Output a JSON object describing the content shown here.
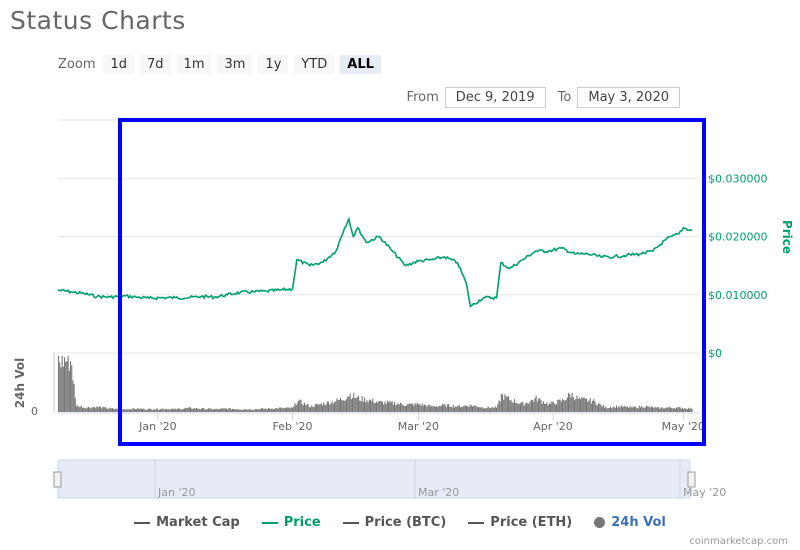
{
  "title": "Status Charts",
  "zoom": {
    "label": "Zoom",
    "buttons": [
      "1d",
      "7d",
      "1m",
      "3m",
      "1y",
      "YTD",
      "ALL"
    ],
    "active": "ALL"
  },
  "range": {
    "from_label": "From",
    "from": "Dec 9, 2019",
    "to_label": "To",
    "to": "May 3, 2020"
  },
  "colors": {
    "price": "#00a06b",
    "volume": "#777777",
    "highlight": "#0000ff",
    "navigator": "#e6ebf5"
  },
  "legend": [
    {
      "label": "Market Cap",
      "color": "#555555",
      "symbol": "line"
    },
    {
      "label": "Price",
      "color": "#00a06b",
      "symbol": "line"
    },
    {
      "label": "Price (BTC)",
      "color": "#555555",
      "symbol": "line"
    },
    {
      "label": "Price (ETH)",
      "color": "#555555",
      "symbol": "line"
    },
    {
      "label": "24h Vol",
      "color": "#777777",
      "symbol": "circle"
    }
  ],
  "credit": "coinmarketcap.com",
  "navigator_labels": [
    "Jan '20",
    "Mar '20",
    "May '20"
  ],
  "chart_data": {
    "type": "line",
    "x_start": "2019-12-09",
    "x_end": "2020-05-03",
    "x_ticks": [
      "Jan '20",
      "Feb '20",
      "Mar '20",
      "Apr '20",
      "May '20"
    ],
    "y_ticks": [
      "$0",
      "$0.010000",
      "$0.020000",
      "$0.030000"
    ],
    "ylabel": "Price",
    "vol_label": "24h Vol",
    "vol_zero_label": "0",
    "ylim": [
      0,
      0.04
    ],
    "grid": true,
    "legend_position": "bottom",
    "series": [
      {
        "name": "Price",
        "points": [
          [
            "2019-12-09",
            0.0108
          ],
          [
            "2019-12-12",
            0.0105
          ],
          [
            "2019-12-15",
            0.0102
          ],
          [
            "2019-12-18",
            0.0097
          ],
          [
            "2019-12-21",
            0.0096
          ],
          [
            "2019-12-24",
            0.0098
          ],
          [
            "2019-12-27",
            0.0096
          ],
          [
            "2019-12-30",
            0.0094
          ],
          [
            "2020-01-02",
            0.0095
          ],
          [
            "2020-01-05",
            0.0095
          ],
          [
            "2020-01-08",
            0.0095
          ],
          [
            "2020-01-11",
            0.0097
          ],
          [
            "2020-01-14",
            0.0096
          ],
          [
            "2020-01-17",
            0.01
          ],
          [
            "2020-01-20",
            0.0104
          ],
          [
            "2020-01-23",
            0.0105
          ],
          [
            "2020-01-26",
            0.0106
          ],
          [
            "2020-01-29",
            0.0108
          ],
          [
            "2020-02-01",
            0.011
          ],
          [
            "2020-02-02",
            0.016
          ],
          [
            "2020-02-05",
            0.015
          ],
          [
            "2020-02-08",
            0.0156
          ],
          [
            "2020-02-11",
            0.0175
          ],
          [
            "2020-02-13",
            0.0215
          ],
          [
            "2020-02-14",
            0.023
          ],
          [
            "2020-02-15",
            0.02
          ],
          [
            "2020-02-16",
            0.0215
          ],
          [
            "2020-02-18",
            0.019
          ],
          [
            "2020-02-21",
            0.02
          ],
          [
            "2020-02-24",
            0.0175
          ],
          [
            "2020-02-27",
            0.015
          ],
          [
            "2020-03-01",
            0.0158
          ],
          [
            "2020-03-04",
            0.016
          ],
          [
            "2020-03-07",
            0.0165
          ],
          [
            "2020-03-10",
            0.0155
          ],
          [
            "2020-03-12",
            0.012
          ],
          [
            "2020-03-13",
            0.008
          ],
          [
            "2020-03-16",
            0.0095
          ],
          [
            "2020-03-19",
            0.0095
          ],
          [
            "2020-03-20",
            0.0155
          ],
          [
            "2020-03-22",
            0.0145
          ],
          [
            "2020-03-25",
            0.016
          ],
          [
            "2020-03-28",
            0.0175
          ],
          [
            "2020-03-31",
            0.0175
          ],
          [
            "2020-04-03",
            0.018
          ],
          [
            "2020-04-06",
            0.017
          ],
          [
            "2020-04-09",
            0.017
          ],
          [
            "2020-04-12",
            0.0165
          ],
          [
            "2020-04-15",
            0.0165
          ],
          [
            "2020-04-18",
            0.0168
          ],
          [
            "2020-04-21",
            0.017
          ],
          [
            "2020-04-24",
            0.0175
          ],
          [
            "2020-04-27",
            0.0195
          ],
          [
            "2020-04-30",
            0.0205
          ],
          [
            "2020-05-01",
            0.0215
          ],
          [
            "2020-05-03",
            0.021
          ]
        ]
      },
      {
        "name": "24h Vol",
        "points": [
          [
            "2019-12-09",
            0.9
          ],
          [
            "2019-12-10",
            0.92
          ],
          [
            "2019-12-11",
            0.93
          ],
          [
            "2019-12-12",
            0.9
          ],
          [
            "2019-12-13",
            0.12
          ],
          [
            "2019-12-15",
            0.08
          ],
          [
            "2019-12-18",
            0.09
          ],
          [
            "2019-12-21",
            0.06
          ],
          [
            "2019-12-24",
            0.05
          ],
          [
            "2019-12-27",
            0.06
          ],
          [
            "2019-12-30",
            0.05
          ],
          [
            "2020-01-02",
            0.06
          ],
          [
            "2020-01-05",
            0.05
          ],
          [
            "2020-01-08",
            0.07
          ],
          [
            "2020-01-11",
            0.06
          ],
          [
            "2020-01-14",
            0.05
          ],
          [
            "2020-01-17",
            0.06
          ],
          [
            "2020-01-20",
            0.05
          ],
          [
            "2020-01-23",
            0.05
          ],
          [
            "2020-01-26",
            0.06
          ],
          [
            "2020-01-29",
            0.07
          ],
          [
            "2020-02-01",
            0.07
          ],
          [
            "2020-02-02",
            0.2
          ],
          [
            "2020-02-05",
            0.1
          ],
          [
            "2020-02-08",
            0.15
          ],
          [
            "2020-02-11",
            0.2
          ],
          [
            "2020-02-13",
            0.25
          ],
          [
            "2020-02-14",
            0.32
          ],
          [
            "2020-02-16",
            0.24
          ],
          [
            "2020-02-18",
            0.22
          ],
          [
            "2020-02-21",
            0.17
          ],
          [
            "2020-02-24",
            0.16
          ],
          [
            "2020-02-27",
            0.13
          ],
          [
            "2020-03-01",
            0.14
          ],
          [
            "2020-03-04",
            0.1
          ],
          [
            "2020-03-07",
            0.12
          ],
          [
            "2020-03-10",
            0.1
          ],
          [
            "2020-03-13",
            0.12
          ],
          [
            "2020-03-16",
            0.08
          ],
          [
            "2020-03-19",
            0.08
          ],
          [
            "2020-03-20",
            0.3
          ],
          [
            "2020-03-22",
            0.22
          ],
          [
            "2020-03-25",
            0.14
          ],
          [
            "2020-03-28",
            0.24
          ],
          [
            "2020-03-31",
            0.14
          ],
          [
            "2020-04-03",
            0.2
          ],
          [
            "2020-04-05",
            0.32
          ],
          [
            "2020-04-07",
            0.22
          ],
          [
            "2020-04-10",
            0.2
          ],
          [
            "2020-04-13",
            0.08
          ],
          [
            "2020-04-16",
            0.1
          ],
          [
            "2020-04-19",
            0.08
          ],
          [
            "2020-04-22",
            0.1
          ],
          [
            "2020-04-25",
            0.07
          ],
          [
            "2020-04-28",
            0.08
          ],
          [
            "2020-05-01",
            0.07
          ],
          [
            "2020-05-03",
            0.06
          ]
        ]
      }
    ]
  }
}
